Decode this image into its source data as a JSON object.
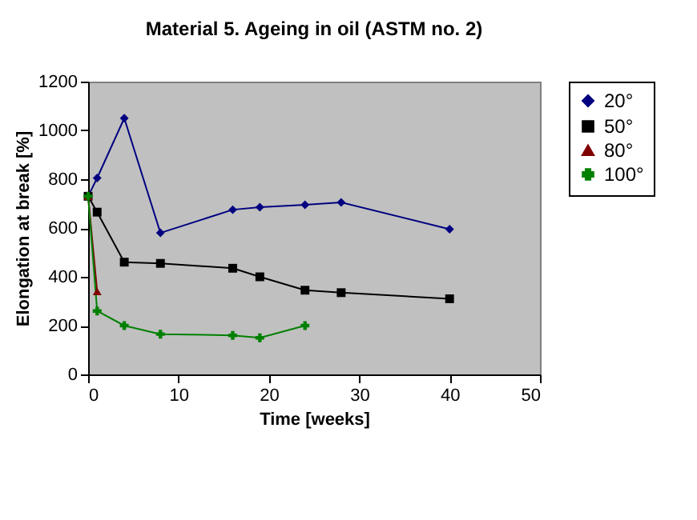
{
  "chart_data": {
    "type": "line",
    "title": "Material 5. Ageing in oil (ASTM no. 2)",
    "xlabel": "Time [weeks]",
    "ylabel": "Elongation at break [%]",
    "xlim": [
      0,
      50
    ],
    "xticks": [
      0,
      10,
      20,
      30,
      40,
      50
    ],
    "ylim": [
      0,
      1200
    ],
    "yticks": [
      0,
      200,
      400,
      600,
      800,
      1000,
      1200
    ],
    "line_style": "solid",
    "grid": false,
    "legend": "right",
    "series": [
      {
        "name": "20°",
        "color": "#000080",
        "marker": "diamond",
        "x": [
          0,
          1,
          4,
          8,
          16,
          19,
          24,
          28,
          40
        ],
        "values": [
          730,
          805,
          1050,
          580,
          675,
          685,
          695,
          705,
          595
        ]
      },
      {
        "name": "50°",
        "color": "#000000",
        "marker": "square",
        "x": [
          0,
          1,
          4,
          8,
          16,
          19,
          24,
          28,
          40
        ],
        "values": [
          730,
          665,
          460,
          455,
          435,
          400,
          345,
          335,
          310
        ]
      },
      {
        "name": "80°",
        "color": "#800000",
        "marker": "triangle",
        "x": [
          0,
          1
        ],
        "values": [
          730,
          340
        ]
      },
      {
        "name": "100°",
        "color": "#008000",
        "marker": "cross",
        "x": [
          0,
          1,
          4,
          8,
          16,
          19,
          24
        ],
        "values": [
          730,
          260,
          200,
          165,
          160,
          150,
          200
        ]
      }
    ]
  }
}
